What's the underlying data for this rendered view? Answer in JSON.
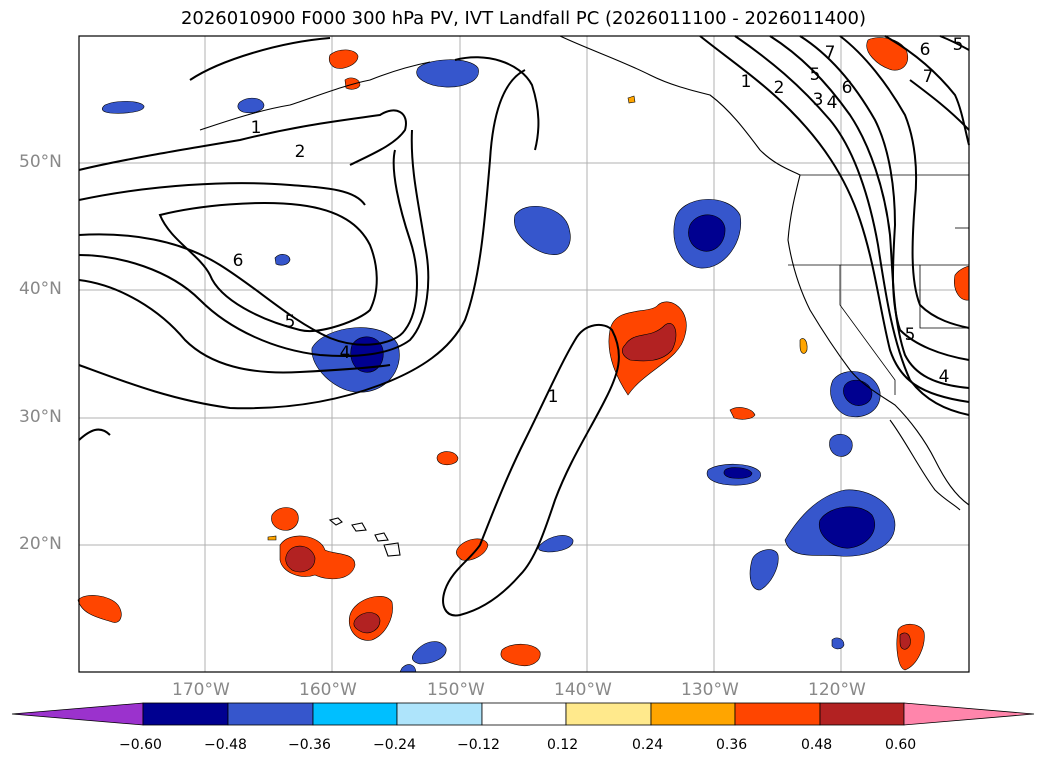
{
  "title": "2026010900 F000 300 hPa PV, IVT Landfall PC (2026011100 - 2026011400)",
  "lat_labels": [
    "50°N",
    "40°N",
    "30°N",
    "20°N"
  ],
  "lon_labels": [
    "170°W",
    "160°W",
    "150°W",
    "140°W",
    "130°W",
    "120°W"
  ],
  "contour_labels": [
    "1",
    "2",
    "6",
    "5",
    "4",
    "1",
    "1",
    "2",
    "3",
    "4",
    "5",
    "6",
    "7",
    "6",
    "7",
    "5",
    "5",
    "4"
  ],
  "colorbar": {
    "ticks": [
      "−0.60",
      "−0.48",
      "−0.36",
      "−0.24",
      "−0.12",
      "0.12",
      "0.24",
      "0.36",
      "0.48",
      "0.60"
    ],
    "colors": [
      "#9b32cd",
      "#000090",
      "#3656cc",
      "#00bfff",
      "#aee4fb",
      "#ffffff",
      "#ffe98c",
      "#ffa500",
      "#ff4500",
      "#b22222",
      "#ff85ab"
    ]
  }
}
